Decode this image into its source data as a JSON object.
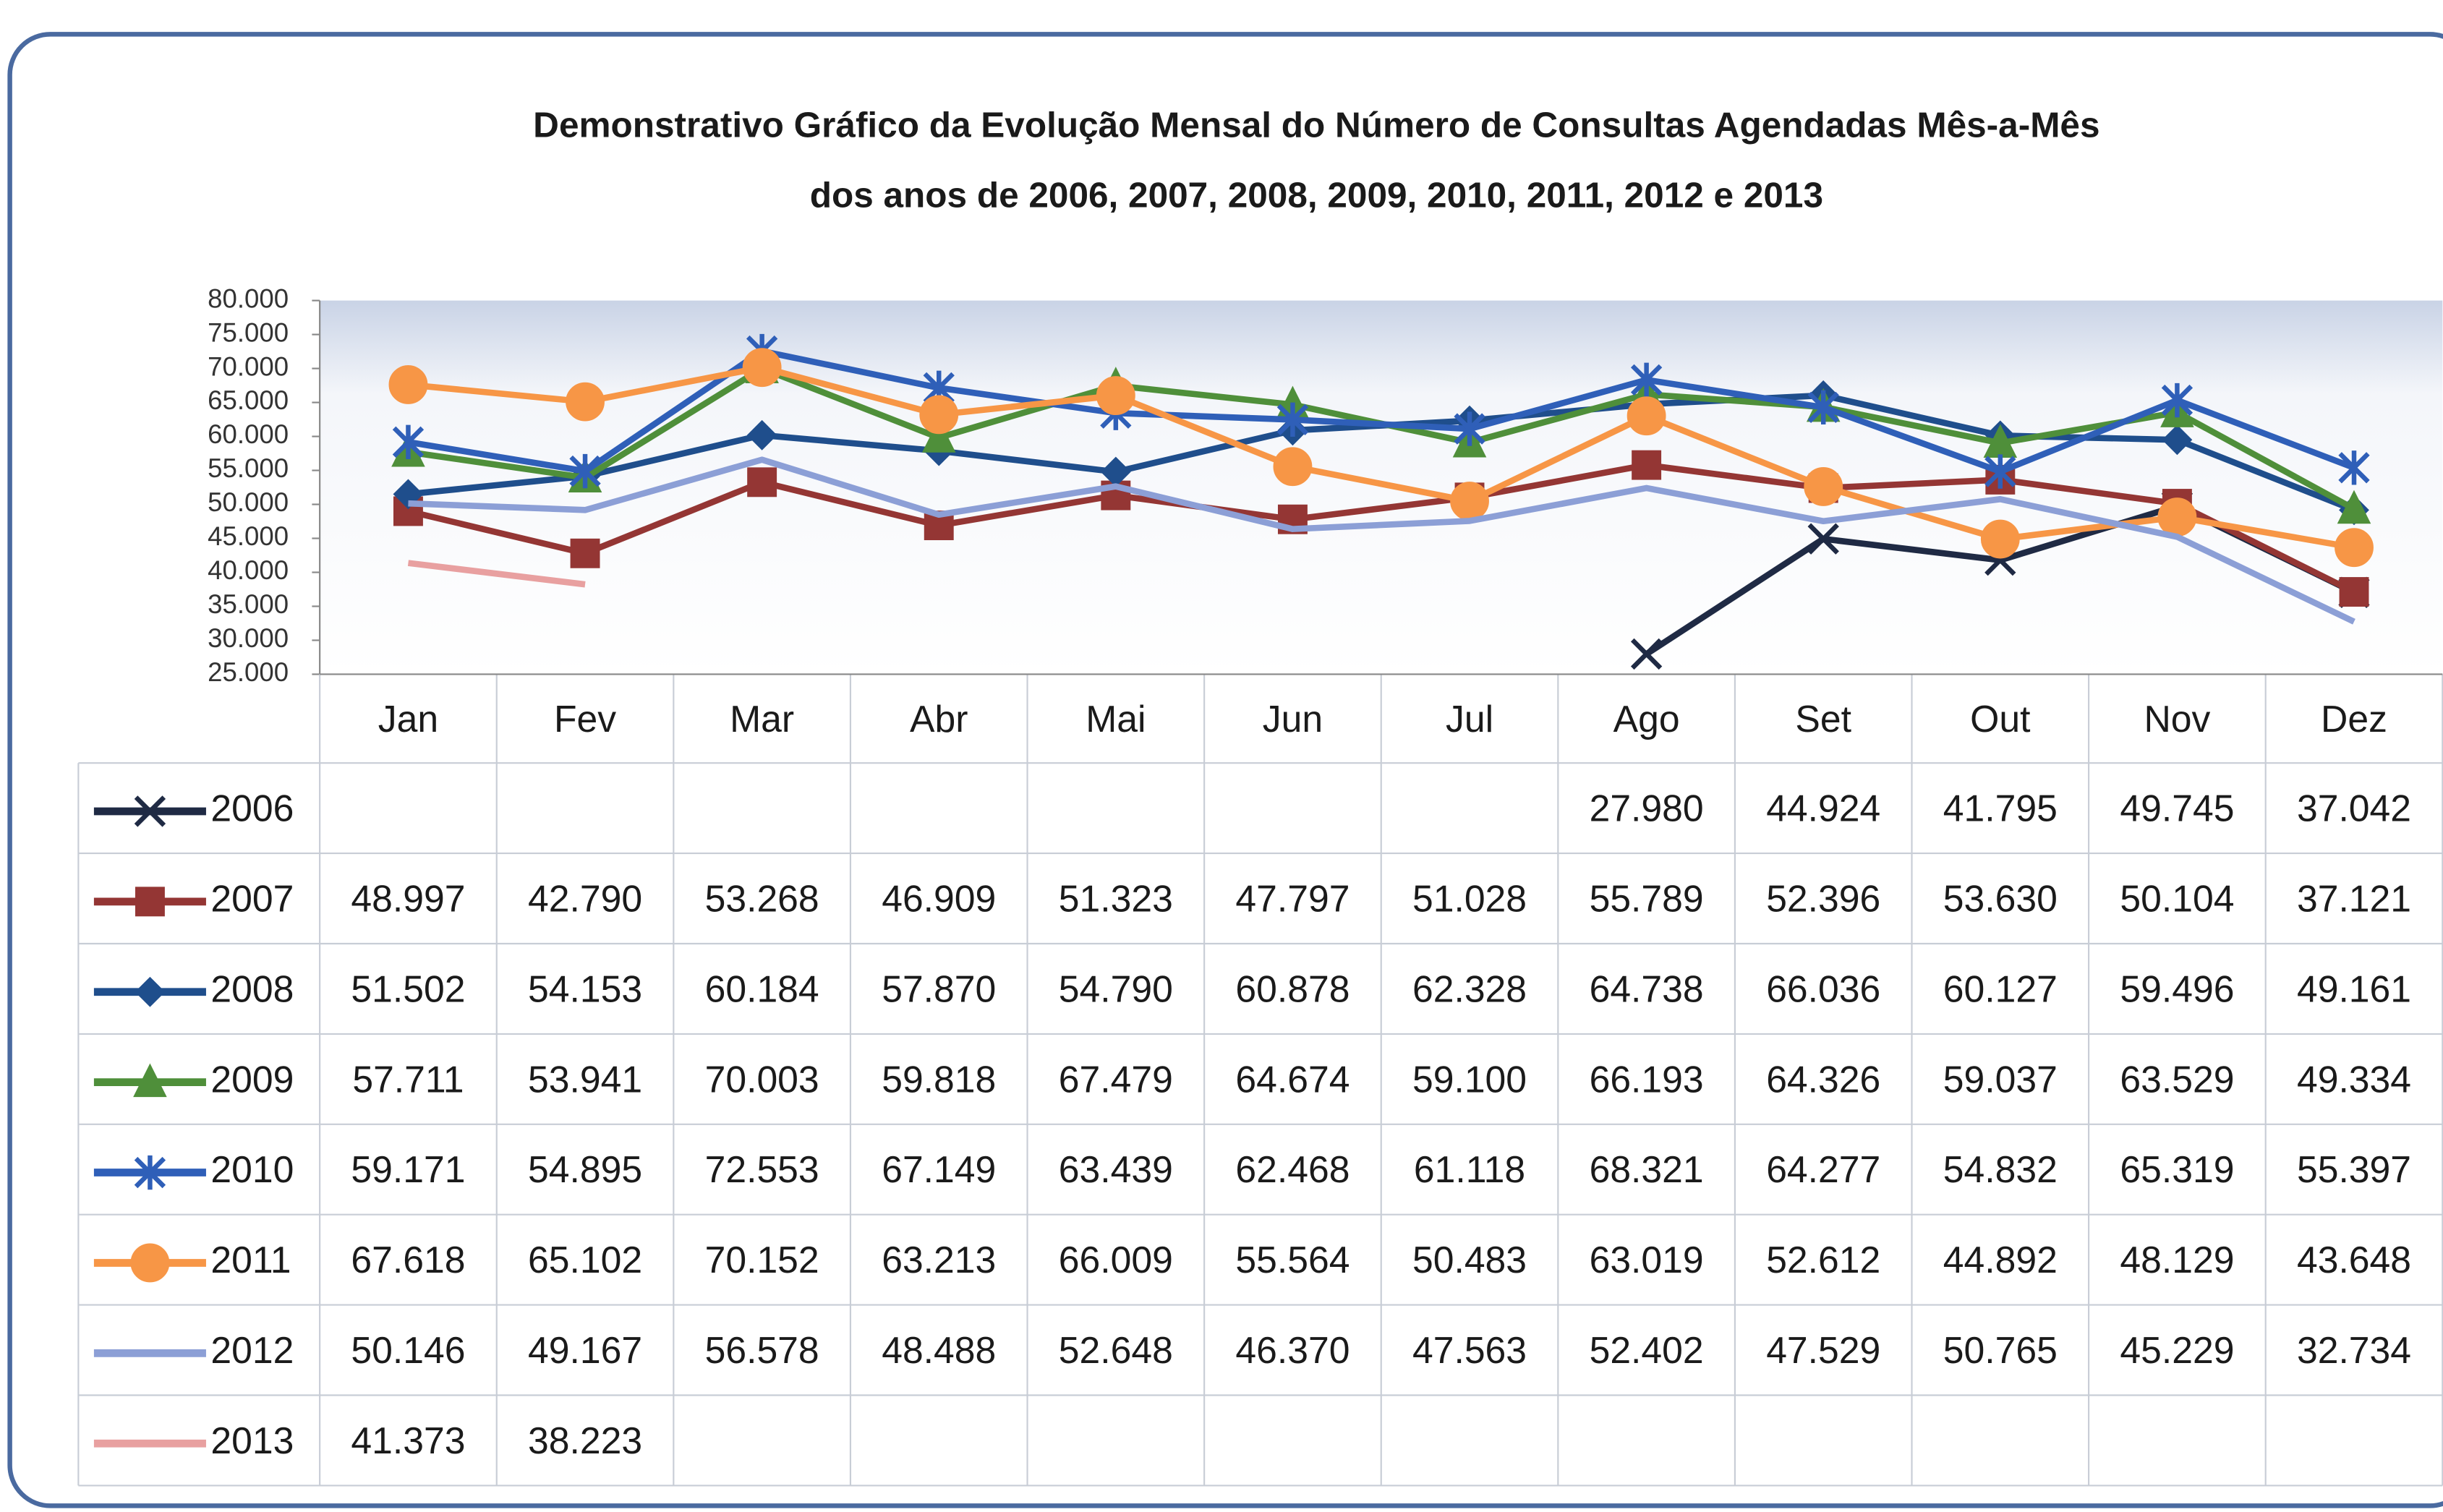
{
  "chart_data": {
    "type": "line",
    "title": "Demonstrativo Gráfico da Evolução Mensal do Número de Consultas Agendadas Mês-a-Mês",
    "subtitle": "dos anos de 2006, 2007, 2008, 2009, 2010, 2011, 2012 e 2013",
    "categories": [
      "Jan",
      "Fev",
      "Mar",
      "Abr",
      "Mai",
      "Jun",
      "Jul",
      "Ago",
      "Set",
      "Out",
      "Nov",
      "Dez"
    ],
    "ylim": [
      25000,
      80000
    ],
    "yticks": [
      {
        "value": 25000,
        "label": "25.000"
      },
      {
        "value": 30000,
        "label": "30.000"
      },
      {
        "value": 35000,
        "label": "35.000"
      },
      {
        "value": 40000,
        "label": "40.000"
      },
      {
        "value": 45000,
        "label": "45.000"
      },
      {
        "value": 50000,
        "label": "50.000"
      },
      {
        "value": 55000,
        "label": "55.000"
      },
      {
        "value": 60000,
        "label": "60.000"
      },
      {
        "value": 65000,
        "label": "65.000"
      },
      {
        "value": 70000,
        "label": "70.000"
      },
      {
        "value": 75000,
        "label": "75.000"
      },
      {
        "value": 80000,
        "label": "80.000"
      }
    ],
    "series": [
      {
        "name": "2006",
        "color": "#1f2a44",
        "marker": "x",
        "values": [
          null,
          null,
          null,
          null,
          null,
          null,
          null,
          27980,
          44924,
          41795,
          49745,
          37042
        ],
        "value_labels": [
          null,
          null,
          null,
          null,
          null,
          null,
          null,
          "27.980",
          "44.924",
          "41.795",
          "49.745",
          "37.042"
        ]
      },
      {
        "name": "2007",
        "color": "#943634",
        "marker": "square",
        "values": [
          48997,
          42790,
          53268,
          46909,
          51323,
          47797,
          51028,
          55789,
          52396,
          53630,
          50104,
          37121
        ],
        "value_labels": [
          "48.997",
          "42.790",
          "53.268",
          "46.909",
          "51.323",
          "47.797",
          "51.028",
          "55.789",
          "52.396",
          "53.630",
          "50.104",
          "37.121"
        ]
      },
      {
        "name": "2008",
        "color": "#1f4e8c",
        "marker": "diamond",
        "values": [
          51502,
          54153,
          60184,
          57870,
          54790,
          60878,
          62328,
          64738,
          66036,
          60127,
          59496,
          49161
        ],
        "value_labels": [
          "51.502",
          "54.153",
          "60.184",
          "57.870",
          "54.790",
          "60.878",
          "62.328",
          "64.738",
          "66.036",
          "60.127",
          "59.496",
          "49.161"
        ]
      },
      {
        "name": "2009",
        "color": "#4f8f3a",
        "marker": "triangle",
        "values": [
          57711,
          53941,
          70003,
          59818,
          67479,
          64674,
          59100,
          66193,
          64326,
          59037,
          63529,
          49334
        ],
        "value_labels": [
          "57.711",
          "53.941",
          "70.003",
          "59.818",
          "67.479",
          "64.674",
          "59.100",
          "66.193",
          "64.326",
          "59.037",
          "63.529",
          "49.334"
        ]
      },
      {
        "name": "2010",
        "color": "#2f5fb8",
        "marker": "star",
        "values": [
          59171,
          54895,
          72553,
          67149,
          63439,
          62468,
          61118,
          68321,
          64277,
          54832,
          65319,
          55397
        ],
        "value_labels": [
          "59.171",
          "54.895",
          "72.553",
          "67.149",
          "63.439",
          "62.468",
          "61.118",
          "68.321",
          "64.277",
          "54.832",
          "65.319",
          "55.397"
        ]
      },
      {
        "name": "2011",
        "color": "#f79646",
        "marker": "circle",
        "values": [
          67618,
          65102,
          70152,
          63213,
          66009,
          55564,
          50483,
          63019,
          52612,
          44892,
          48129,
          43648
        ],
        "value_labels": [
          "67.618",
          "65.102",
          "70.152",
          "63.213",
          "66.009",
          "55.564",
          "50.483",
          "63.019",
          "52.612",
          "44.892",
          "48.129",
          "43.648"
        ]
      },
      {
        "name": "2012",
        "color": "#8c9fd6",
        "marker": "none",
        "values": [
          50146,
          49167,
          56578,
          48488,
          52648,
          46370,
          47563,
          52402,
          47529,
          50765,
          45229,
          32734
        ],
        "value_labels": [
          "50.146",
          "49.167",
          "56.578",
          "48.488",
          "52.648",
          "46.370",
          "47.563",
          "52.402",
          "47.529",
          "50.765",
          "45.229",
          "32.734"
        ]
      },
      {
        "name": "2013",
        "color": "#e8a0a0",
        "marker": "none",
        "values": [
          41373,
          38223,
          null,
          null,
          null,
          null,
          null,
          null,
          null,
          null,
          null,
          null
        ],
        "value_labels": [
          "41.373",
          "38.223",
          null,
          null,
          null,
          null,
          null,
          null,
          null,
          null,
          null,
          null
        ]
      }
    ]
  }
}
